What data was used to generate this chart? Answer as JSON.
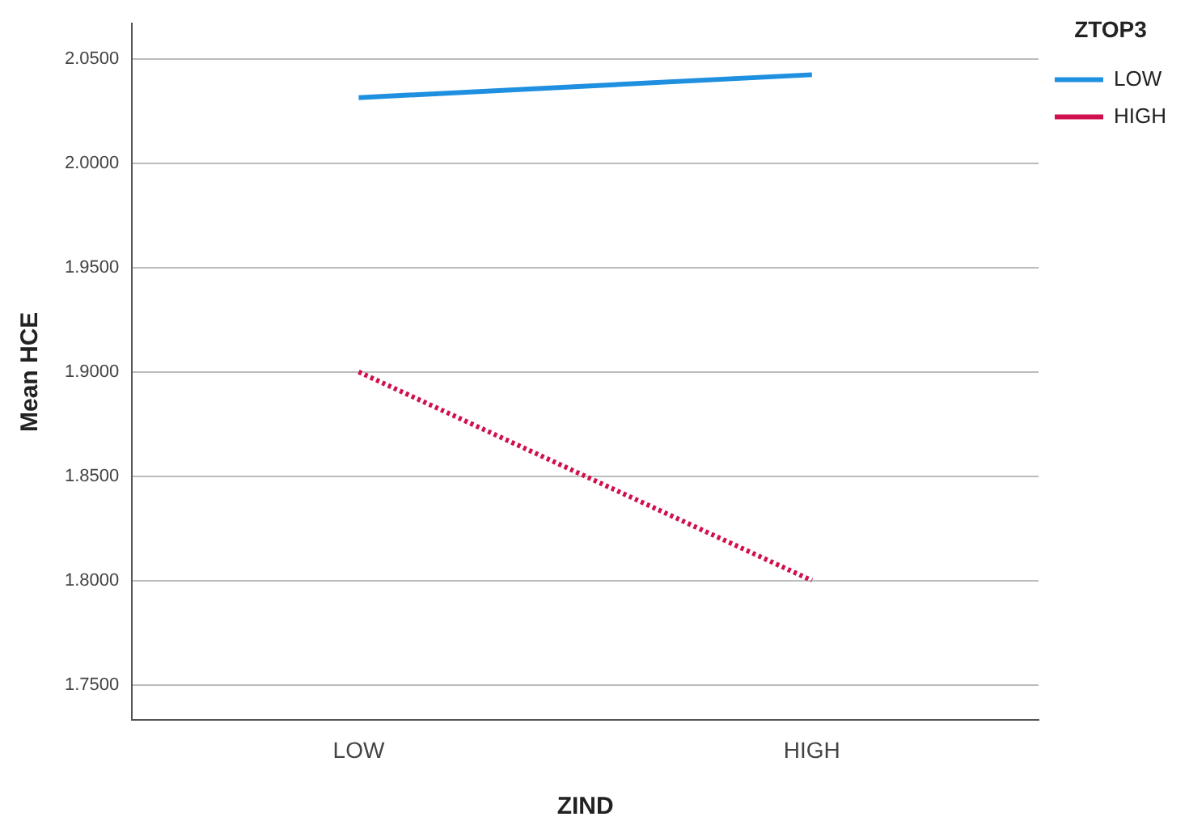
{
  "chart_data": {
    "type": "line",
    "xlabel": "ZIND",
    "ylabel": "Mean HCE",
    "legend_title": "ZTOP3",
    "categories": [
      "LOW",
      "HIGH"
    ],
    "series": [
      {
        "name": "LOW",
        "color": "#1f8fe0",
        "values": [
          2.0315,
          2.0425
        ],
        "line_style": "solid"
      },
      {
        "name": "HIGH",
        "color": "#d0104c",
        "values": [
          1.9,
          1.8
        ],
        "line_style": "dotted"
      }
    ],
    "ylim": [
      1.733,
      2.067
    ],
    "yticks": [
      {
        "value": 1.75,
        "label": "1.7500"
      },
      {
        "value": 1.8,
        "label": "1.8000"
      },
      {
        "value": 1.85,
        "label": "1.8500"
      },
      {
        "value": 1.9,
        "label": "1.9000"
      },
      {
        "value": 1.95,
        "label": "1.9500"
      },
      {
        "value": 2.0,
        "label": "2.0000"
      },
      {
        "value": 2.05,
        "label": "2.0500"
      }
    ],
    "grid": "y",
    "legend": "top right",
    "marker": "none"
  }
}
